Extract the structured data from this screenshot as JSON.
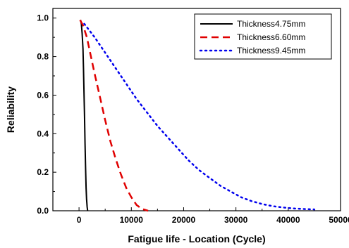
{
  "chart_data": {
    "type": "line",
    "title": "",
    "xlabel": "Fatigue life - Location (Cycle)",
    "ylabel": "Reliability",
    "xlim": [
      -5000,
      50000
    ],
    "ylim": [
      0,
      1.05
    ],
    "xticks": [
      0,
      10000,
      20000,
      30000,
      40000,
      50000
    ],
    "xtick_labels": [
      "0",
      "10000",
      "20000",
      "30000",
      "40000",
      "50000"
    ],
    "yticks": [
      0.0,
      0.2,
      0.4,
      0.6,
      0.8,
      1.0
    ],
    "ytick_labels": [
      "0.0",
      "0.2",
      "0.4",
      "0.6",
      "0.8",
      "1.0"
    ],
    "grid": false,
    "legend_position": "top-right",
    "series": [
      {
        "name": "Thickness4.75mm",
        "color": "#000000",
        "style": "solid",
        "x": [
          300,
          450,
          600,
          750,
          850,
          950,
          1050,
          1150,
          1250,
          1350,
          1450,
          1550,
          1650
        ],
        "y": [
          0.99,
          0.97,
          0.92,
          0.84,
          0.74,
          0.62,
          0.49,
          0.35,
          0.22,
          0.12,
          0.06,
          0.02,
          0.0
        ]
      },
      {
        "name": "Thickness6.60mm",
        "color": "#e00000",
        "style": "dashed",
        "x": [
          200,
          800,
          1500,
          2200,
          3000,
          4000,
          5000,
          6000,
          7000,
          8000,
          9000,
          10000,
          11000,
          12000,
          13200
        ],
        "y": [
          0.99,
          0.96,
          0.9,
          0.81,
          0.71,
          0.59,
          0.47,
          0.36,
          0.27,
          0.19,
          0.12,
          0.07,
          0.03,
          0.01,
          0.0
        ]
      },
      {
        "name": "Thickness9.45mm",
        "color": "#0000ee",
        "style": "dotted",
        "x": [
          1000,
          3000,
          5000,
          7000,
          9000,
          11000,
          13000,
          15000,
          17000,
          19000,
          21000,
          23000,
          25000,
          27000,
          29000,
          31000,
          33000,
          35000,
          37000,
          39000,
          41000,
          43000,
          45000
        ],
        "y": [
          0.97,
          0.9,
          0.82,
          0.74,
          0.66,
          0.58,
          0.51,
          0.44,
          0.38,
          0.32,
          0.26,
          0.21,
          0.17,
          0.13,
          0.1,
          0.07,
          0.05,
          0.035,
          0.024,
          0.017,
          0.012,
          0.009,
          0.007
        ]
      }
    ]
  }
}
